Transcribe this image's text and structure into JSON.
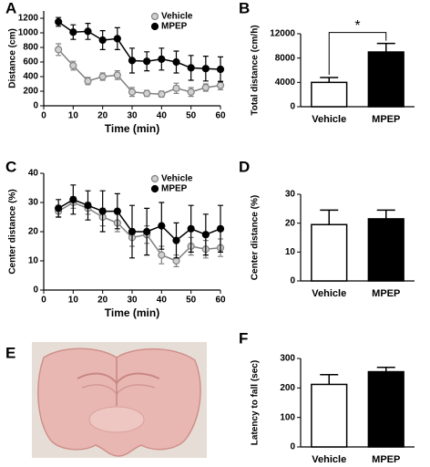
{
  "chart_data": [
    {
      "panel": "A",
      "type": "line",
      "ylabel": "Distance (cm)",
      "xlabel": "Time (min)",
      "x": [
        5,
        10,
        15,
        20,
        25,
        30,
        35,
        40,
        45,
        50,
        55,
        60
      ],
      "xlim": [
        0,
        60
      ],
      "xticks": [
        0,
        10,
        20,
        30,
        40,
        50,
        60
      ],
      "ylim": [
        0,
        1300
      ],
      "yticks": [
        0,
        200,
        400,
        600,
        800,
        1000,
        1200
      ],
      "legend": "upper right",
      "series": [
        {
          "name": "Vehicle",
          "color": "#808080",
          "fill": "#d0d0d0",
          "values": [
            770,
            550,
            340,
            400,
            420,
            190,
            170,
            160,
            240,
            190,
            250,
            280
          ],
          "errors": [
            80,
            60,
            50,
            50,
            60,
            60,
            40,
            40,
            70,
            60,
            50,
            60
          ]
        },
        {
          "name": "MPEP",
          "color": "#000000",
          "fill": "#000000",
          "values": [
            1150,
            1010,
            1020,
            900,
            920,
            620,
            610,
            640,
            600,
            520,
            510,
            500
          ],
          "errors": [
            60,
            100,
            110,
            130,
            150,
            170,
            130,
            150,
            150,
            170,
            170,
            170
          ]
        }
      ]
    },
    {
      "panel": "B",
      "type": "bar",
      "ylabel": "Total distance (cm/h)",
      "categories": [
        "Vehicle",
        "MPEP"
      ],
      "values": [
        4000,
        9000
      ],
      "errors": [
        800,
        1400
      ],
      "colors": [
        "#ffffff",
        "#000000"
      ],
      "ylim": [
        0,
        12000
      ],
      "yticks": [
        0,
        4000,
        8000,
        12000
      ],
      "annotation": "*"
    },
    {
      "panel": "C",
      "type": "line",
      "ylabel": "Center distance (%)",
      "xlabel": "Time (min)",
      "x": [
        5,
        10,
        15,
        20,
        25,
        30,
        35,
        40,
        45,
        50,
        55,
        60
      ],
      "xlim": [
        0,
        60
      ],
      "xticks": [
        0,
        10,
        20,
        30,
        40,
        50,
        60
      ],
      "ylim": [
        0,
        40
      ],
      "yticks": [
        0,
        10,
        20,
        30,
        40
      ],
      "legend": "upper right",
      "series": [
        {
          "name": "Vehicle",
          "color": "#808080",
          "fill": "#d0d0d0",
          "values": [
            27,
            30,
            28,
            25,
            23,
            18,
            19,
            12,
            10,
            15,
            14,
            14.5
          ],
          "errors": [
            2,
            2,
            2,
            3,
            3,
            3,
            3,
            3,
            2,
            3,
            3,
            3
          ]
        },
        {
          "name": "MPEP",
          "color": "#000000",
          "fill": "#000000",
          "values": [
            28,
            31,
            29,
            27,
            27,
            20,
            20,
            22,
            17,
            21,
            19,
            21
          ],
          "errors": [
            3,
            5,
            5,
            7,
            6,
            9,
            8,
            8,
            6,
            8,
            7,
            8
          ]
        }
      ]
    },
    {
      "panel": "D",
      "type": "bar",
      "ylabel": "Center distance (%)",
      "categories": [
        "Vehicle",
        "MPEP"
      ],
      "values": [
        19.5,
        21.5
      ],
      "errors": [
        5,
        3
      ],
      "colors": [
        "#ffffff",
        "#000000"
      ],
      "ylim": [
        0,
        30
      ],
      "yticks": [
        0,
        10,
        20,
        30
      ]
    },
    {
      "panel": "F",
      "type": "bar",
      "ylabel": "Latency to fall (sec)",
      "categories": [
        "Vehicle",
        "MPEP"
      ],
      "values": [
        212,
        255
      ],
      "errors": [
        33,
        15
      ],
      "colors": [
        "#ffffff",
        "#000000"
      ],
      "ylim": [
        0,
        300
      ],
      "yticks": [
        0,
        100,
        200,
        300
      ]
    }
  ],
  "image_panel": {
    "panel": "E"
  }
}
